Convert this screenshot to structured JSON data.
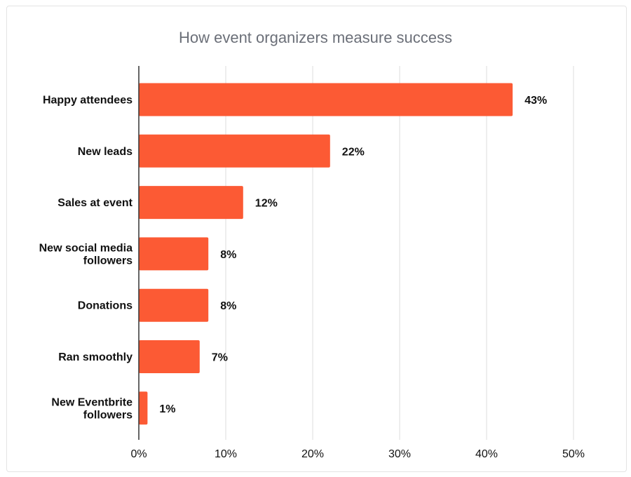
{
  "chart_data": {
    "type": "bar",
    "orientation": "horizontal",
    "title": "How event organizers measure success",
    "xlabel": "",
    "ylabel": "",
    "categories": [
      "Happy attendees",
      "New leads",
      "Sales at event",
      "New social media followers",
      "Donations",
      "Ran smoothly",
      "New Eventbrite followers"
    ],
    "category_lines": [
      [
        "Happy attendees"
      ],
      [
        "New leads"
      ],
      [
        "Sales at event"
      ],
      [
        "New social media",
        "followers"
      ],
      [
        "Donations"
      ],
      [
        "Ran smoothly"
      ],
      [
        "New Eventbrite",
        "followers"
      ]
    ],
    "values": [
      43,
      22,
      12,
      8,
      8,
      7,
      1
    ],
    "value_labels": [
      "43%",
      "22%",
      "12%",
      "8%",
      "8%",
      "7%",
      "1%"
    ],
    "xlim": [
      0,
      50
    ],
    "xticks": [
      0,
      10,
      20,
      30,
      40,
      50
    ],
    "xtick_labels": [
      "0%",
      "10%",
      "20%",
      "30%",
      "40%",
      "50%"
    ],
    "grid": true,
    "legend": "none",
    "bar_color": "#fc5a34",
    "grid_color": "#dddddd",
    "axis_color": "#333333"
  }
}
